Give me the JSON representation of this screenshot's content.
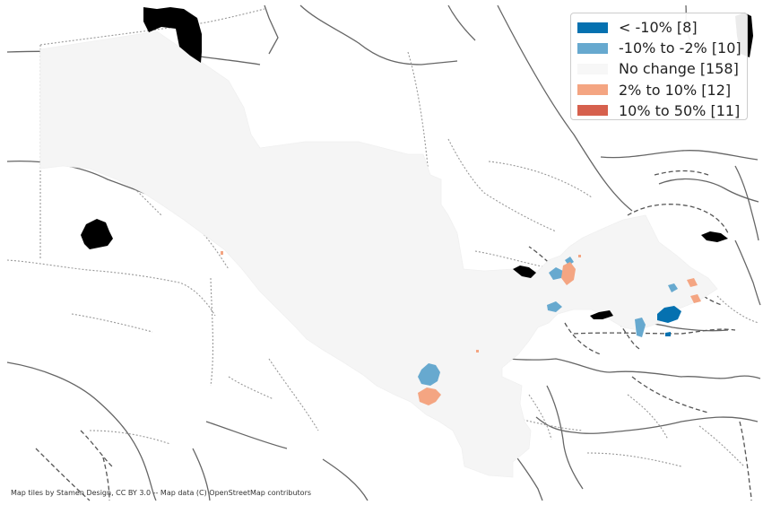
{
  "map": {
    "base_color": "#f5f5f5",
    "water_color": "#000000",
    "border_color": "#666666"
  },
  "legend": {
    "items": [
      {
        "label": "< -10% [8]",
        "color": "#0571b0"
      },
      {
        "label": "-10% to -2% [10]",
        "color": "#67a9cf"
      },
      {
        "label": "No change [158]",
        "color": "#f7f7f7"
      },
      {
        "label": "2% to 10% [12]",
        "color": "#f4a582"
      },
      {
        "label": "10% to 50% [11]",
        "color": "#d6604d"
      }
    ]
  },
  "attribution": "Map tiles by Stamen Design, CC BY 3.0 -- Map data (C) OpenStreetMap contributors"
}
